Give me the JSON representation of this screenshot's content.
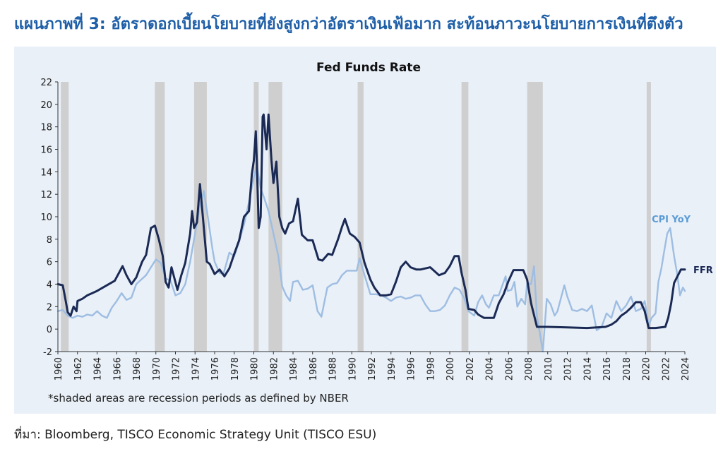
{
  "header": {
    "title": "แผนภาพที่ 3: อัตราดอกเบี้ยนโยบายที่ยังสูงกว่าอัตราเงินเฟ้อมาก สะท้อนภาวะนโยบายการเงินที่ตึงตัว"
  },
  "note": "*shaded areas are recession periods as defined by NBER",
  "footer": {
    "source": "ที่มา: Bloomberg, TISCO Economic Strategy Unit (TISCO ESU)"
  },
  "colors": {
    "ffr": "#1b2a55",
    "cpi": "#9ebde2",
    "recession": "#cfcfcf",
    "title": "#1f5fa8",
    "cpi_label": "#5b9bd5",
    "panel": "#e9f0f8"
  },
  "chart_data": {
    "type": "line",
    "title": "Fed Funds Rate",
    "xlim": [
      1960,
      2024
    ],
    "ylim": [
      -2,
      22
    ],
    "x_ticks": [
      1960,
      1962,
      1964,
      1966,
      1968,
      1970,
      1972,
      1974,
      1976,
      1978,
      1980,
      1982,
      1984,
      1986,
      1988,
      1990,
      1992,
      1994,
      1996,
      1998,
      2000,
      2002,
      2004,
      2006,
      2008,
      2010,
      2012,
      2014,
      2016,
      2018,
      2020,
      2022,
      2024
    ],
    "y_ticks": [
      -2,
      0,
      2,
      4,
      6,
      8,
      10,
      12,
      14,
      16,
      18,
      20,
      22
    ],
    "grid": false,
    "recessions": [
      [
        1960.3,
        1961.1
      ],
      [
        1969.9,
        1970.9
      ],
      [
        1973.9,
        1975.2
      ],
      [
        1980.0,
        1980.5
      ],
      [
        1981.5,
        1982.9
      ],
      [
        1990.6,
        1991.2
      ],
      [
        2001.2,
        2001.9
      ],
      [
        2007.9,
        2009.5
      ],
      [
        2020.1,
        2020.4
      ]
    ],
    "series": [
      {
        "name": "FFR",
        "points": [
          [
            1960,
            4.0
          ],
          [
            1960.5,
            3.9
          ],
          [
            1960.8,
            2.5
          ],
          [
            1961,
            1.5
          ],
          [
            1961.3,
            1.2
          ],
          [
            1961.6,
            2.0
          ],
          [
            1961.9,
            1.6
          ],
          [
            1962,
            2.5
          ],
          [
            1962.5,
            2.7
          ],
          [
            1963,
            3.0
          ],
          [
            1964,
            3.4
          ],
          [
            1965,
            3.9
          ],
          [
            1965.8,
            4.3
          ],
          [
            1966.6,
            5.6
          ],
          [
            1967,
            4.8
          ],
          [
            1967.5,
            4.0
          ],
          [
            1968,
            4.6
          ],
          [
            1968.6,
            6.0
          ],
          [
            1969,
            6.6
          ],
          [
            1969.5,
            9.0
          ],
          [
            1969.9,
            9.2
          ],
          [
            1970.3,
            8.0
          ],
          [
            1970.7,
            6.5
          ],
          [
            1971,
            4.2
          ],
          [
            1971.3,
            3.7
          ],
          [
            1971.6,
            5.5
          ],
          [
            1971.9,
            4.5
          ],
          [
            1972.2,
            3.5
          ],
          [
            1972.6,
            4.8
          ],
          [
            1973,
            5.9
          ],
          [
            1973.5,
            8.5
          ],
          [
            1973.7,
            10.5
          ],
          [
            1973.9,
            9.0
          ],
          [
            1974.2,
            9.5
          ],
          [
            1974.5,
            12.9
          ],
          [
            1974.9,
            9.0
          ],
          [
            1975.2,
            6.0
          ],
          [
            1975.5,
            5.8
          ],
          [
            1976,
            4.9
          ],
          [
            1976.5,
            5.3
          ],
          [
            1977,
            4.7
          ],
          [
            1977.5,
            5.4
          ],
          [
            1978,
            6.7
          ],
          [
            1978.5,
            7.9
          ],
          [
            1979,
            10.0
          ],
          [
            1979.5,
            10.5
          ],
          [
            1979.8,
            13.8
          ],
          [
            1980,
            15.0
          ],
          [
            1980.2,
            17.6
          ],
          [
            1980.3,
            15.0
          ],
          [
            1980.5,
            9.0
          ],
          [
            1980.7,
            10.0
          ],
          [
            1980.9,
            18.9
          ],
          [
            1981,
            19.1
          ],
          [
            1981.3,
            16.0
          ],
          [
            1981.5,
            19.1
          ],
          [
            1981.8,
            15.0
          ],
          [
            1982,
            13.0
          ],
          [
            1982.3,
            14.9
          ],
          [
            1982.6,
            10.0
          ],
          [
            1982.9,
            9.0
          ],
          [
            1983.2,
            8.5
          ],
          [
            1983.6,
            9.4
          ],
          [
            1984,
            9.6
          ],
          [
            1984.5,
            11.6
          ],
          [
            1984.9,
            8.4
          ],
          [
            1985.5,
            7.9
          ],
          [
            1986,
            7.9
          ],
          [
            1986.6,
            6.2
          ],
          [
            1987,
            6.1
          ],
          [
            1987.6,
            6.7
          ],
          [
            1988,
            6.6
          ],
          [
            1988.6,
            8.0
          ],
          [
            1989,
            9.1
          ],
          [
            1989.3,
            9.8
          ],
          [
            1989.8,
            8.5
          ],
          [
            1990.3,
            8.2
          ],
          [
            1990.8,
            7.7
          ],
          [
            1991.3,
            5.9
          ],
          [
            1991.9,
            4.4
          ],
          [
            1992.3,
            3.7
          ],
          [
            1992.9,
            3.0
          ],
          [
            1993.5,
            3.0
          ],
          [
            1994,
            3.1
          ],
          [
            1994.5,
            4.2
          ],
          [
            1995,
            5.5
          ],
          [
            1995.5,
            6.0
          ],
          [
            1996,
            5.5
          ],
          [
            1996.6,
            5.3
          ],
          [
            1997,
            5.3
          ],
          [
            1998,
            5.5
          ],
          [
            1998.9,
            4.8
          ],
          [
            1999.5,
            5.0
          ],
          [
            2000,
            5.6
          ],
          [
            2000.5,
            6.5
          ],
          [
            2000.9,
            6.5
          ],
          [
            2001.2,
            5.0
          ],
          [
            2001.6,
            3.5
          ],
          [
            2001.9,
            1.8
          ],
          [
            2002.5,
            1.7
          ],
          [
            2002.9,
            1.3
          ],
          [
            2003.5,
            1.0
          ],
          [
            2004.5,
            1.0
          ],
          [
            2005,
            2.3
          ],
          [
            2005.5,
            3.1
          ],
          [
            2006,
            4.3
          ],
          [
            2006.5,
            5.25
          ],
          [
            2007.5,
            5.25
          ],
          [
            2007.9,
            4.4
          ],
          [
            2008.3,
            2.3
          ],
          [
            2008.9,
            0.2
          ],
          [
            2010,
            0.2
          ],
          [
            2012,
            0.15
          ],
          [
            2014,
            0.1
          ],
          [
            2015.9,
            0.2
          ],
          [
            2016.5,
            0.4
          ],
          [
            2017,
            0.7
          ],
          [
            2017.5,
            1.2
          ],
          [
            2018,
            1.5
          ],
          [
            2018.5,
            1.9
          ],
          [
            2019,
            2.4
          ],
          [
            2019.5,
            2.4
          ],
          [
            2019.9,
            1.6
          ],
          [
            2020.3,
            0.1
          ],
          [
            2021,
            0.1
          ],
          [
            2022,
            0.2
          ],
          [
            2022.3,
            1.0
          ],
          [
            2022.6,
            2.3
          ],
          [
            2022.9,
            4.1
          ],
          [
            2023.3,
            4.8
          ],
          [
            2023.6,
            5.3
          ],
          [
            2024,
            5.3
          ]
        ]
      },
      {
        "name": "CPI YoY",
        "points": [
          [
            1960,
            1.6
          ],
          [
            1960.5,
            1.7
          ],
          [
            1961,
            1.2
          ],
          [
            1961.5,
            1.0
          ],
          [
            1962,
            1.2
          ],
          [
            1962.5,
            1.1
          ],
          [
            1963,
            1.3
          ],
          [
            1963.5,
            1.2
          ],
          [
            1964,
            1.6
          ],
          [
            1964.5,
            1.2
          ],
          [
            1965,
            1.0
          ],
          [
            1965.5,
            1.9
          ],
          [
            1966,
            2.5
          ],
          [
            1966.5,
            3.2
          ],
          [
            1967,
            2.6
          ],
          [
            1967.5,
            2.8
          ],
          [
            1968,
            4.0
          ],
          [
            1968.5,
            4.4
          ],
          [
            1969,
            4.8
          ],
          [
            1969.5,
            5.5
          ],
          [
            1970,
            6.2
          ],
          [
            1970.5,
            5.9
          ],
          [
            1971,
            4.5
          ],
          [
            1971.5,
            4.3
          ],
          [
            1972,
            3.0
          ],
          [
            1972.5,
            3.2
          ],
          [
            1973,
            4.0
          ],
          [
            1973.5,
            6.0
          ],
          [
            1973.9,
            8.0
          ],
          [
            1974.5,
            11.0
          ],
          [
            1974.9,
            12.3
          ],
          [
            1975.3,
            10.0
          ],
          [
            1975.8,
            7.0
          ],
          [
            1976,
            6.0
          ],
          [
            1976.5,
            5.0
          ],
          [
            1976.9,
            4.9
          ],
          [
            1977.5,
            6.8
          ],
          [
            1978,
            6.5
          ],
          [
            1978.5,
            7.8
          ],
          [
            1979,
            9.3
          ],
          [
            1979.5,
            11.3
          ],
          [
            1980,
            13.5
          ],
          [
            1980.3,
            14.6
          ],
          [
            1980.7,
            12.5
          ],
          [
            1981,
            11.8
          ],
          [
            1981.5,
            10.5
          ],
          [
            1981.9,
            8.9
          ],
          [
            1982.5,
            6.5
          ],
          [
            1982.9,
            3.8
          ],
          [
            1983.3,
            3.0
          ],
          [
            1983.7,
            2.5
          ],
          [
            1984,
            4.2
          ],
          [
            1984.5,
            4.3
          ],
          [
            1985,
            3.5
          ],
          [
            1985.5,
            3.6
          ],
          [
            1986,
            3.9
          ],
          [
            1986.5,
            1.6
          ],
          [
            1986.9,
            1.1
          ],
          [
            1987.5,
            3.7
          ],
          [
            1988,
            4.0
          ],
          [
            1988.5,
            4.1
          ],
          [
            1989,
            4.8
          ],
          [
            1989.5,
            5.2
          ],
          [
            1990,
            5.2
          ],
          [
            1990.5,
            5.2
          ],
          [
            1990.8,
            6.3
          ],
          [
            1991.3,
            4.8
          ],
          [
            1991.9,
            3.1
          ],
          [
            1992.5,
            3.1
          ],
          [
            1993,
            3.0
          ],
          [
            1993.5,
            2.8
          ],
          [
            1994,
            2.5
          ],
          [
            1994.5,
            2.8
          ],
          [
            1995,
            2.9
          ],
          [
            1995.5,
            2.7
          ],
          [
            1996,
            2.8
          ],
          [
            1996.5,
            3.0
          ],
          [
            1997,
            3.0
          ],
          [
            1997.5,
            2.2
          ],
          [
            1998,
            1.6
          ],
          [
            1998.5,
            1.6
          ],
          [
            1999,
            1.7
          ],
          [
            1999.5,
            2.1
          ],
          [
            2000,
            3.0
          ],
          [
            2000.5,
            3.7
          ],
          [
            2001,
            3.5
          ],
          [
            2001.5,
            2.7
          ],
          [
            2001.9,
            1.6
          ],
          [
            2002.5,
            1.2
          ],
          [
            2002.9,
            2.4
          ],
          [
            2003.3,
            3.0
          ],
          [
            2003.7,
            2.2
          ],
          [
            2004,
            1.9
          ],
          [
            2004.5,
            3.0
          ],
          [
            2005,
            3.0
          ],
          [
            2005.7,
            4.7
          ],
          [
            2005.9,
            3.4
          ],
          [
            2006.3,
            3.5
          ],
          [
            2006.6,
            4.2
          ],
          [
            2006.9,
            2.0
          ],
          [
            2007.3,
            2.7
          ],
          [
            2007.7,
            2.2
          ],
          [
            2007.9,
            4.1
          ],
          [
            2008.3,
            4.0
          ],
          [
            2008.6,
            5.6
          ],
          [
            2008.9,
            1.1
          ],
          [
            2009.2,
            -0.4
          ],
          [
            2009.5,
            -2.0
          ],
          [
            2009.9,
            2.7
          ],
          [
            2010.3,
            2.2
          ],
          [
            2010.7,
            1.2
          ],
          [
            2011,
            1.6
          ],
          [
            2011.7,
            3.9
          ],
          [
            2012,
            2.9
          ],
          [
            2012.5,
            1.7
          ],
          [
            2013,
            1.6
          ],
          [
            2013.5,
            1.8
          ],
          [
            2014,
            1.6
          ],
          [
            2014.5,
            2.1
          ],
          [
            2015,
            -0.1
          ],
          [
            2015.5,
            0.2
          ],
          [
            2016,
            1.4
          ],
          [
            2016.5,
            1.0
          ],
          [
            2017,
            2.5
          ],
          [
            2017.5,
            1.6
          ],
          [
            2018,
            2.1
          ],
          [
            2018.5,
            2.9
          ],
          [
            2019,
            1.6
          ],
          [
            2019.5,
            1.8
          ],
          [
            2019.9,
            2.5
          ],
          [
            2020.3,
            0.3
          ],
          [
            2020.6,
            1.0
          ],
          [
            2021,
            1.4
          ],
          [
            2021.3,
            4.2
          ],
          [
            2021.6,
            5.4
          ],
          [
            2021.9,
            7.0
          ],
          [
            2022.2,
            8.5
          ],
          [
            2022.5,
            9.0
          ],
          [
            2022.9,
            6.5
          ],
          [
            2023.2,
            5.0
          ],
          [
            2023.5,
            3.0
          ],
          [
            2023.8,
            3.7
          ],
          [
            2024,
            3.4
          ]
        ]
      }
    ]
  }
}
